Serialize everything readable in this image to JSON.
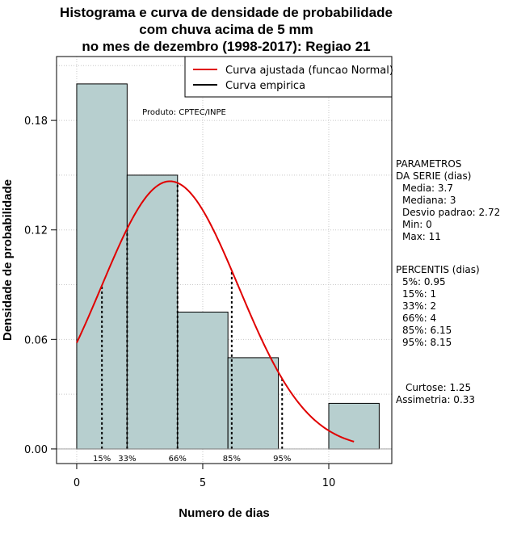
{
  "title_lines": [
    "Histograma e curva de densidade de probabilidade",
    "com chuva acima de 5 mm",
    "no mes de dezembro (1998-2017): Regiao 21"
  ],
  "credit": "Produto: CPTEC/INPE",
  "chart_data": {
    "type": "bar",
    "xlabel": "Numero de dias",
    "ylabel": "Densidade de probabilidade",
    "xlim": [
      -0.8,
      12.5
    ],
    "ylim": [
      -0.008,
      0.215
    ],
    "x_ticks": [
      0,
      5,
      10
    ],
    "y_ticks": [
      0.0,
      0.06,
      0.12,
      0.18
    ],
    "y_tick_labels": [
      "0.00",
      "0.06",
      "0.12",
      "0.18"
    ],
    "grid": true,
    "colors": {
      "bar_fill": "#b7cfcf",
      "fitted_curve": "#e00000",
      "empirical_curve": "#000000",
      "grid": "#c8c8c8"
    },
    "bins": [
      {
        "x0": 0,
        "x1": 2,
        "density": 0.2
      },
      {
        "x0": 2,
        "x1": 4,
        "density": 0.15
      },
      {
        "x0": 4,
        "x1": 6,
        "density": 0.075
      },
      {
        "x0": 6,
        "x1": 8,
        "density": 0.05
      },
      {
        "x0": 8,
        "x1": 10,
        "density": 0.0
      },
      {
        "x0": 10,
        "x1": 12,
        "density": 0.025
      }
    ],
    "fitted_normal": {
      "mean": 3.7,
      "sd": 2.72,
      "x_range": [
        0,
        11
      ]
    },
    "percentile_markers": [
      {
        "label": "15%",
        "x": 1
      },
      {
        "label": "33%",
        "x": 2
      },
      {
        "label": "66%",
        "x": 4
      },
      {
        "label": "85%",
        "x": 6.15
      },
      {
        "label": "95%",
        "x": 8.15
      }
    ],
    "legend": {
      "position": "top-right",
      "entries": [
        {
          "label": "Curva ajustada (funcao Normal)",
          "color": "#e00000"
        },
        {
          "label": "Curva empirica",
          "color": "#000000"
        }
      ]
    }
  },
  "side_panel": {
    "params_header": [
      "PARAMETROS",
      "DA SERIE (dias)"
    ],
    "params": [
      "Media: 3.7",
      "Mediana: 3",
      "Desvio padrao: 2.72",
      "Min: 0",
      "Max: 11"
    ],
    "pct_header": "PERCENTIS (dias)",
    "percentiles": [
      "5%: 0.95",
      "15%: 1",
      "33%: 2",
      "66%: 4",
      "85%: 6.15",
      "95%: 8.15"
    ],
    "shape": [
      "Curtose: 1.25",
      "Assimetria: 0.33"
    ]
  }
}
